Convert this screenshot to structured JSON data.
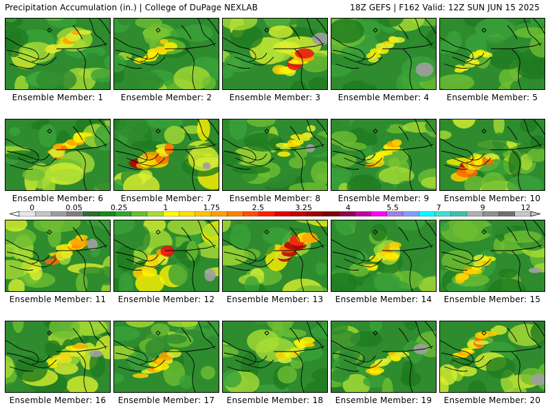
{
  "header": {
    "left": "Precipitation Accumulation (in.) | College of DuPage NEXLAB",
    "right": "18Z GEFS | F162 Valid: 12Z SUN JUN 15 2025"
  },
  "members": [
    {
      "label": "Ensemble Member: 1",
      "intensity": 0.55
    },
    {
      "label": "Ensemble Member: 2",
      "intensity": 0.45
    },
    {
      "label": "Ensemble Member: 3",
      "intensity": 0.85
    },
    {
      "label": "Ensemble Member: 4",
      "intensity": 0.35
    },
    {
      "label": "Ensemble Member: 5",
      "intensity": 0.2
    },
    {
      "label": "Ensemble Member: 6",
      "intensity": 0.65
    },
    {
      "label": "Ensemble Member: 7",
      "intensity": 0.9
    },
    {
      "label": "Ensemble Member: 8",
      "intensity": 0.35
    },
    {
      "label": "Ensemble Member: 9",
      "intensity": 0.5
    },
    {
      "label": "Ensemble Member: 10",
      "intensity": 0.9
    },
    {
      "label": "Ensemble Member: 11",
      "intensity": 0.75
    },
    {
      "label": "Ensemble Member: 12",
      "intensity": 0.85
    },
    {
      "label": "Ensemble Member: 13",
      "intensity": 1.0
    },
    {
      "label": "Ensemble Member: 14",
      "intensity": 0.45
    },
    {
      "label": "Ensemble Member: 15",
      "intensity": 0.45
    },
    {
      "label": "Ensemble Member: 16",
      "intensity": 0.7
    },
    {
      "label": "Ensemble Member: 17",
      "intensity": 0.5
    },
    {
      "label": "Ensemble Member: 18",
      "intensity": 0.4
    },
    {
      "label": "Ensemble Member: 19",
      "intensity": 0.45
    },
    {
      "label": "Ensemble Member: 20",
      "intensity": 0.7
    }
  ],
  "legend": {
    "colors": [
      "#e6e6e6",
      "#c4c4c4",
      "#9e9e9e",
      "#7f7f7f",
      "#2e6e2e",
      "#1a8a1a",
      "#30a530",
      "#66c030",
      "#a8dc34",
      "#ffff00",
      "#ffe000",
      "#ffc400",
      "#ffa000",
      "#ff8000",
      "#ff5000",
      "#ff2000",
      "#e00000",
      "#c00000",
      "#a00000",
      "#800000",
      "#900050",
      "#c000a0",
      "#ff00ff",
      "#a080e0",
      "#80a0ff",
      "#00ffff",
      "#40e0d0",
      "#40c0b0",
      "#b0b0b0",
      "#909090",
      "#707070",
      "#c8c8c8"
    ],
    "labels": [
      {
        "text": "0",
        "pos": 0.025
      },
      {
        "text": "0.05",
        "pos": 0.107
      },
      {
        "text": "0.25",
        "pos": 0.195
      },
      {
        "text": "1",
        "pos": 0.286
      },
      {
        "text": "1.75",
        "pos": 0.376
      },
      {
        "text": "2.5",
        "pos": 0.467
      },
      {
        "text": "3.25",
        "pos": 0.556
      },
      {
        "text": "4",
        "pos": 0.643
      },
      {
        "text": "5.5",
        "pos": 0.73
      },
      {
        "text": "7",
        "pos": 0.82
      },
      {
        "text": "9",
        "pos": 0.906
      },
      {
        "text": "12",
        "pos": 0.99
      }
    ]
  }
}
